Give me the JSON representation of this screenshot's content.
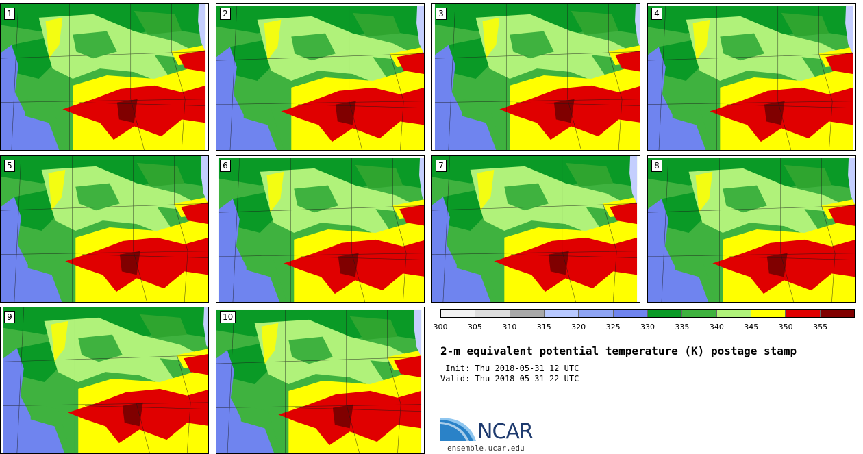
{
  "stamps": [
    {
      "id": "1",
      "label": "1"
    },
    {
      "id": "2",
      "label": "2"
    },
    {
      "id": "3",
      "label": "3"
    },
    {
      "id": "4",
      "label": "4"
    },
    {
      "id": "5",
      "label": "5"
    },
    {
      "id": "6",
      "label": "6"
    },
    {
      "id": "7",
      "label": "7"
    },
    {
      "id": "8",
      "label": "8"
    },
    {
      "id": "9",
      "label": "9"
    },
    {
      "id": "10",
      "label": "10"
    }
  ],
  "colorbar": {
    "ticks": [
      "300",
      "305",
      "310",
      "315",
      "320",
      "325",
      "330",
      "335",
      "340",
      "345",
      "350",
      "355"
    ],
    "colors": [
      "#f2f2f2",
      "#dddddd",
      "#a8a8a8",
      "#b7c8ff",
      "#8ea4f4",
      "#6f84ef",
      "#0a9a26",
      "#3fb23f",
      "#b0f27a",
      "#ffff00",
      "#e00000",
      "#800000"
    ]
  },
  "map_colors": {
    "blue": "#6f84ef",
    "dark_green": "#0a9a26",
    "green": "#3fb23f",
    "light_green": "#b0f27a",
    "yellow": "#ffff00",
    "red": "#e00000",
    "dark_red": "#800000",
    "lake": "#c4cefe"
  },
  "title": "2-m equivalent potential temperature (K) postage stamp",
  "init_line": " Init: Thu 2018-05-31 12 UTC",
  "valid_line": "Valid: Thu 2018-05-31 22 UTC",
  "logo_text": "NCAR",
  "website": "ensemble.ucar.edu"
}
